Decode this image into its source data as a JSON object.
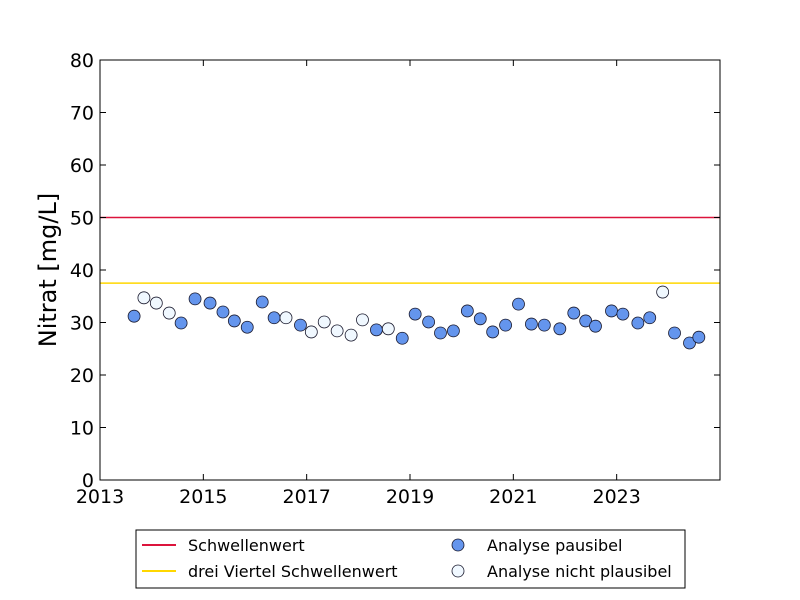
{
  "chart_data": {
    "type": "scatter",
    "ylabel": "Nitrat [mg/L]",
    "xlabel": "",
    "xlim": [
      2013,
      2025
    ],
    "ylim": [
      0,
      80
    ],
    "xticks": [
      2013,
      2015,
      2017,
      2019,
      2021,
      2023
    ],
    "yticks": [
      0,
      10,
      20,
      30,
      40,
      50,
      60,
      70,
      80
    ],
    "grid": false,
    "legend_placement": "bottom-outside",
    "hlines": [
      {
        "name": "Schwellenwert",
        "y": 50,
        "color": "#dc143c"
      },
      {
        "name": "drei Viertel Schwellenwert",
        "y": 37.5,
        "color": "#ffd700"
      }
    ],
    "series": [
      {
        "name": "Analyse pausibel",
        "color": "#6495ed",
        "points": [
          [
            2013.66,
            31.2
          ],
          [
            2014.57,
            29.9
          ],
          [
            2014.84,
            34.5
          ],
          [
            2015.13,
            33.7
          ],
          [
            2015.38,
            32.0
          ],
          [
            2015.6,
            30.3
          ],
          [
            2015.85,
            29.1
          ],
          [
            2016.14,
            33.9
          ],
          [
            2016.37,
            30.9
          ],
          [
            2016.88,
            29.5
          ],
          [
            2018.35,
            28.6
          ],
          [
            2018.85,
            27.0
          ],
          [
            2019.1,
            31.6
          ],
          [
            2019.36,
            30.1
          ],
          [
            2019.59,
            28.0
          ],
          [
            2019.84,
            28.4
          ],
          [
            2020.11,
            32.2
          ],
          [
            2020.36,
            30.7
          ],
          [
            2020.6,
            28.2
          ],
          [
            2020.85,
            29.5
          ],
          [
            2021.1,
            33.5
          ],
          [
            2021.35,
            29.7
          ],
          [
            2021.6,
            29.5
          ],
          [
            2021.9,
            28.8
          ],
          [
            2022.17,
            31.8
          ],
          [
            2022.4,
            30.3
          ],
          [
            2022.59,
            29.3
          ],
          [
            2022.9,
            32.2
          ],
          [
            2023.12,
            31.6
          ],
          [
            2023.41,
            29.9
          ],
          [
            2023.64,
            30.9
          ],
          [
            2024.12,
            28.0
          ],
          [
            2024.41,
            26.1
          ],
          [
            2024.59,
            27.2
          ]
        ]
      },
      {
        "name": "Analyse nicht plausibel",
        "color": "#f0f8ff",
        "points": [
          [
            2013.85,
            34.7
          ],
          [
            2014.09,
            33.7
          ],
          [
            2014.34,
            31.8
          ],
          [
            2016.6,
            30.9
          ],
          [
            2017.09,
            28.2
          ],
          [
            2017.34,
            30.1
          ],
          [
            2017.59,
            28.4
          ],
          [
            2017.86,
            27.6
          ],
          [
            2018.08,
            30.5
          ],
          [
            2018.58,
            28.8
          ],
          [
            2023.89,
            35.8
          ]
        ]
      }
    ]
  }
}
